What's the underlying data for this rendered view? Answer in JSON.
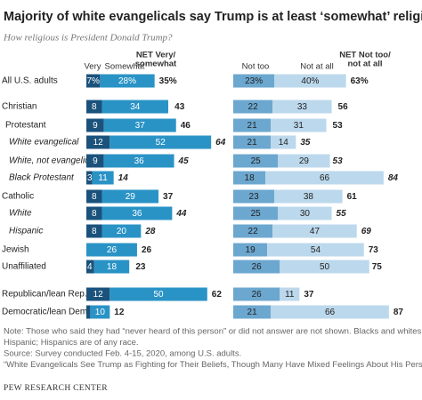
{
  "chart_data": {
    "type": "bar",
    "title": "Majority of white evangelicals say Trump is at least ‘somewhat’ religious",
    "subtitle": "How religious is President Donald Trump?",
    "categories": [
      "All U.S. adults",
      "Christian",
      "Protestant",
      "White evangelical",
      "White, not evangelical",
      "Black Protestant",
      "Catholic",
      "White",
      "Hispanic",
      "Jewish",
      "Unaffiliated",
      "Republican/lean Rep.",
      "Democratic/lean Dem."
    ],
    "panels": [
      {
        "series": [
          {
            "name": "Very",
            "color": "#1b527c",
            "values": [
              7,
              8,
              9,
              12,
              9,
              3,
              8,
              8,
              8,
              null,
              4,
              12,
              2
            ],
            "value_labels": [
              "7%",
              "8",
              "9",
              "12",
              "9",
              "3",
              "8",
              "8",
              "8",
              null,
              "4",
              "12",
              null
            ]
          },
          {
            "name": "Somewhat",
            "color": "#2a93c6",
            "values": [
              28,
              34,
              37,
              52,
              36,
              11,
              29,
              36,
              20,
              26,
              18,
              50,
              10
            ],
            "value_labels": [
              "28%",
              "34",
              "37",
              "52",
              "36",
              "11",
              "29",
              "36",
              "20",
              "26",
              "18",
              "50",
              "10"
            ]
          }
        ],
        "net": {
          "name": [
            "NET Very/",
            "somewhat"
          ],
          "values": [
            35,
            43,
            46,
            64,
            45,
            14,
            37,
            44,
            28,
            26,
            23,
            62,
            12
          ],
          "value_labels": [
            "35%",
            "43",
            "46",
            "64",
            "45",
            "14",
            "37",
            "44",
            "28",
            "26",
            "23",
            "62",
            "12"
          ]
        }
      },
      {
        "series": [
          {
            "name": "Not too",
            "color": "#6ca7cf",
            "values": [
              23,
              22,
              21,
              21,
              25,
              18,
              23,
              25,
              22,
              19,
              26,
              26,
              21
            ],
            "value_labels": [
              "23%",
              "22",
              "21",
              "21",
              "25",
              "18",
              "23",
              "25",
              "22",
              "19",
              "26",
              "26",
              "21"
            ]
          },
          {
            "name": "Not at all",
            "color": "#bcd8ec",
            "values": [
              40,
              33,
              31,
              14,
              29,
              66,
              38,
              30,
              47,
              54,
              50,
              11,
              66
            ],
            "value_labels": [
              "40%",
              "33",
              "31",
              "14",
              "29",
              "66",
              "38",
              "30",
              "47",
              "54",
              "50",
              "11",
              "66"
            ]
          }
        ],
        "net": {
          "name": [
            "NET Not too/",
            "not at all"
          ],
          "values": [
            63,
            56,
            53,
            35,
            53,
            84,
            61,
            55,
            69,
            73,
            75,
            37,
            87
          ],
          "value_labels": [
            "63%",
            "56",
            "53",
            "35",
            "53",
            "84",
            "61",
            "55",
            "69",
            "73",
            "75",
            "37",
            "87"
          ]
        }
      }
    ],
    "notes": [
      "Note: Those who said they had “never heard of this person” or did not answer are not shown. Blacks and whites are not",
      "Hispanic; Hispanics are of any race.",
      "Source: Survey conducted Feb. 4-15, 2020, among U.S. adults.",
      "“White Evangelicals See Trump as Fighting for Their Beliefs, Though Many Have Mixed Feelings About His Personal Conduct”"
    ],
    "source": "PEW RESEARCH CENTER"
  }
}
